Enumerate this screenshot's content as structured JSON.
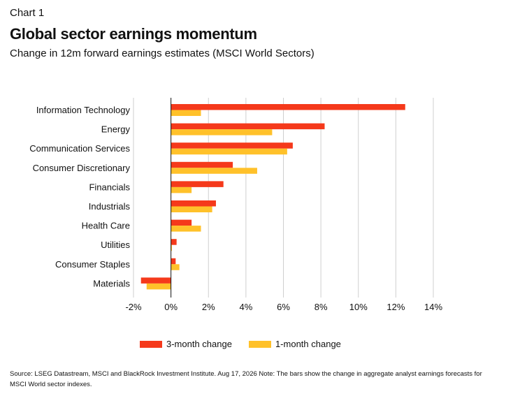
{
  "header": {
    "eyebrow": "Chart 1",
    "title": "Global sector earnings momentum",
    "subtitle": "Change in 12m forward earnings estimates (MSCI World Sectors)"
  },
  "colors": {
    "three_month": "#f5391b",
    "one_month": "#ffc12a",
    "grid": "#cfcfcf",
    "axis": "#111111"
  },
  "chart_data": {
    "type": "bar",
    "orientation": "horizontal",
    "categories": [
      "Information Technology",
      "Energy",
      "Communication Services",
      "Consumer Discretionary",
      "Financials",
      "Industrials",
      "Health Care",
      "Utilities",
      "Consumer Staples",
      "Materials"
    ],
    "series": [
      {
        "name": "3-month change",
        "values": [
          12.5,
          8.2,
          6.5,
          3.3,
          2.8,
          2.4,
          1.1,
          0.3,
          0.25,
          -1.6
        ]
      },
      {
        "name": "1-month change",
        "values": [
          1.6,
          5.4,
          6.2,
          4.6,
          1.1,
          2.2,
          1.6,
          0.05,
          0.45,
          -1.3
        ]
      }
    ],
    "xlim": [
      -2,
      14
    ],
    "xticks": [
      -2,
      0,
      2,
      4,
      6,
      8,
      10,
      12,
      14
    ],
    "tick_labels": [
      "-2%",
      "0%",
      "2%",
      "4%",
      "6%",
      "8%",
      "10%",
      "12%",
      "14%"
    ],
    "grid": true,
    "legend_position": "bottom"
  },
  "source": "Source: LSEG Datastream, MSCI and BlackRock Investment Institute. Aug 17, 2026 Note: The bars show the change in aggregate analyst earnings forecasts for MSCI World sector indexes."
}
